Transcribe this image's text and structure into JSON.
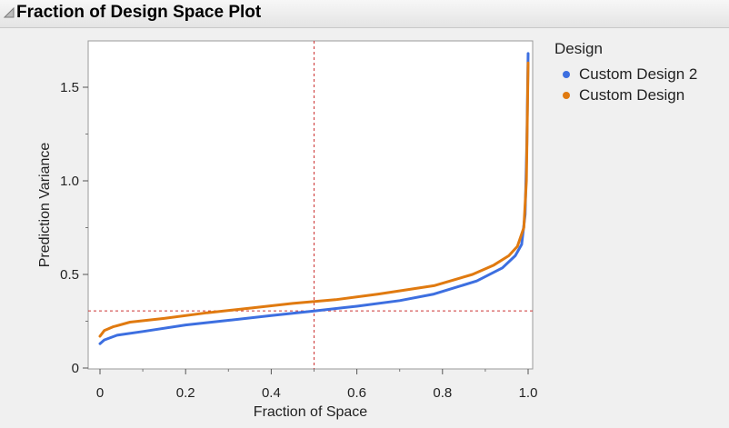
{
  "header": {
    "title": "Fraction of Design Space Plot",
    "disclosure_icon": "triangle-down-icon"
  },
  "legend": {
    "title": "Design"
  },
  "chart_data": {
    "type": "line",
    "title": "Fraction of Design Space Plot",
    "xlabel": "Fraction of Space",
    "ylabel": "Prediction Variance",
    "xlim": [
      0,
      1.0
    ],
    "ylim": [
      0,
      1.73
    ],
    "x_ticks": [
      0,
      0.2,
      0.4,
      0.6,
      0.8,
      1.0
    ],
    "x_tick_labels": [
      "0",
      "0.2",
      "0.4",
      "0.6",
      "0.8",
      "1.0"
    ],
    "y_ticks": [
      0,
      0.5,
      1.0,
      1.5
    ],
    "y_tick_labels": [
      "0",
      "0.5",
      "1.0",
      "1.5"
    ],
    "grid": false,
    "legend_position": "right",
    "reference_lines": {
      "x": 0.5,
      "y": 0.305,
      "color": "#cc3333",
      "style": "dashed"
    },
    "series": [
      {
        "name": "Custom Design 2",
        "color": "#3d6fe0",
        "x": [
          0,
          0.01,
          0.04,
          0.1,
          0.2,
          0.3,
          0.4,
          0.5,
          0.6,
          0.7,
          0.78,
          0.88,
          0.94,
          0.97,
          0.985,
          0.993,
          0.997,
          1.0
        ],
        "y": [
          0.13,
          0.15,
          0.175,
          0.195,
          0.23,
          0.255,
          0.28,
          0.305,
          0.33,
          0.36,
          0.395,
          0.465,
          0.535,
          0.6,
          0.66,
          0.82,
          1.2,
          1.68
        ]
      },
      {
        "name": "Custom Design",
        "color": "#e07a10",
        "x": [
          0,
          0.01,
          0.03,
          0.07,
          0.15,
          0.25,
          0.35,
          0.45,
          0.55,
          0.65,
          0.78,
          0.87,
          0.92,
          0.955,
          0.975,
          0.99,
          0.996,
          1.0
        ],
        "y": [
          0.17,
          0.2,
          0.22,
          0.245,
          0.265,
          0.295,
          0.32,
          0.345,
          0.365,
          0.395,
          0.44,
          0.5,
          0.55,
          0.6,
          0.65,
          0.75,
          1.0,
          1.63
        ]
      }
    ]
  }
}
